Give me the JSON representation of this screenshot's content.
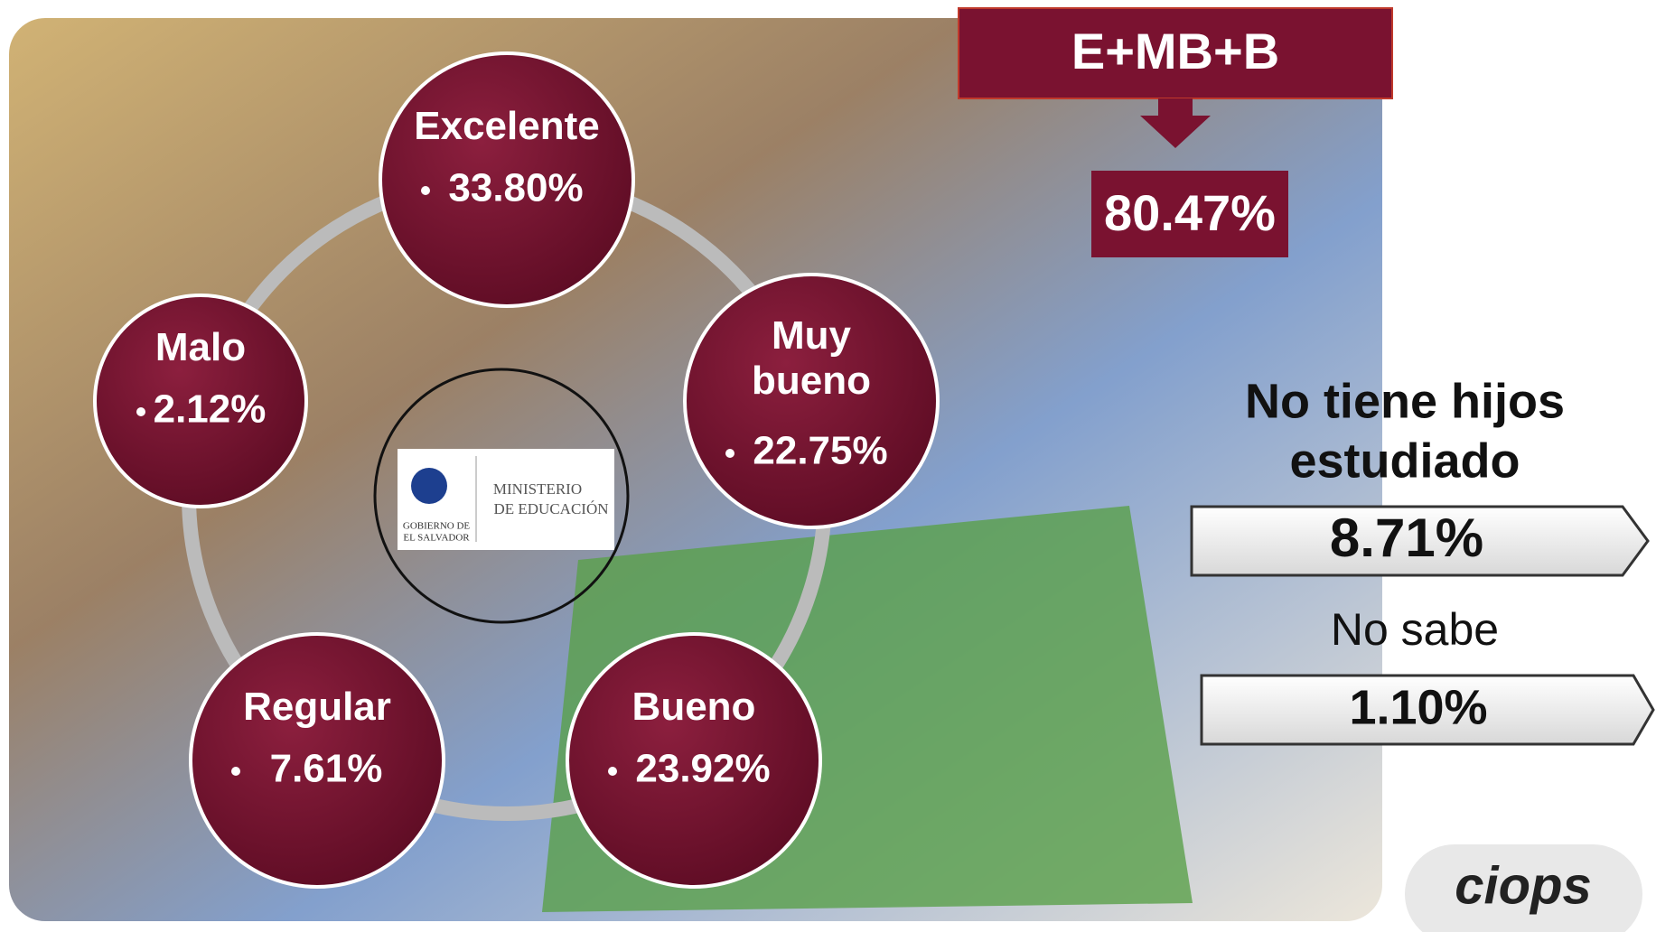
{
  "header": {
    "label": "E+MB+B",
    "value": "80.47%"
  },
  "nodes": [
    {
      "label": "Excelente",
      "value": "33.80%"
    },
    {
      "label": "Muy bueno",
      "value": "22.75%"
    },
    {
      "label": "Bueno",
      "value": "23.92%"
    },
    {
      "label": "Regular",
      "value": "7.61%"
    },
    {
      "label": "Malo",
      "value": "2.12%"
    }
  ],
  "logo": {
    "line1": "MINISTERIO",
    "line2": "DE EDUCACIÓN",
    "seal1": "GOBIERNO DE",
    "seal2": "EL SALVADOR"
  },
  "side": [
    {
      "label": "No tiene hijos estudiado",
      "value": "8.71%"
    },
    {
      "label": "No sabe",
      "value": "1.10%"
    }
  ],
  "brand": "ciops"
}
